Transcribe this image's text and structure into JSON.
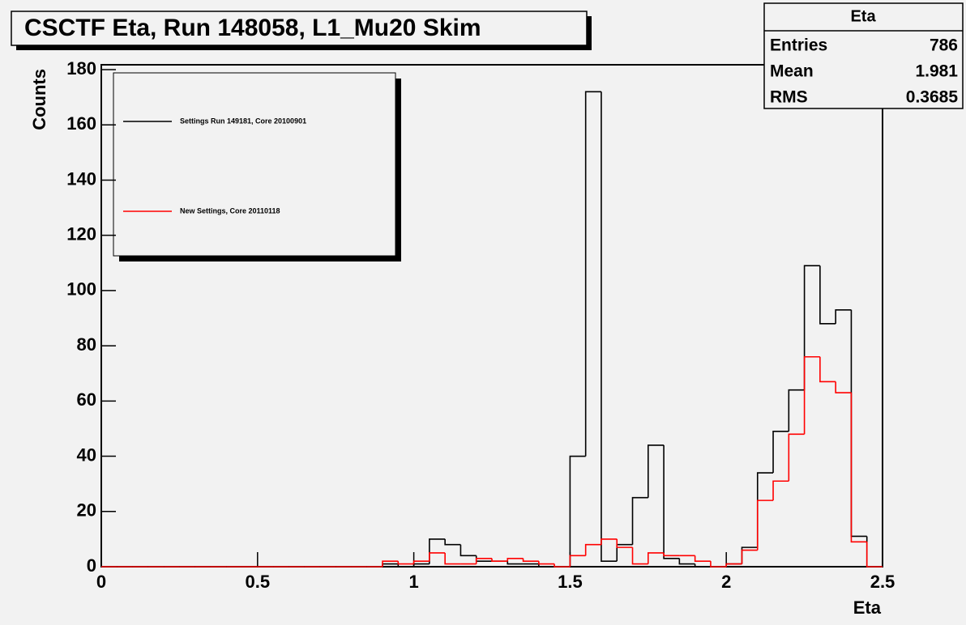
{
  "chart_data": {
    "type": "histogram",
    "title": "CSCTF Eta, Run 148058, L1_Mu20 Skim",
    "x_label": "Eta",
    "y_label": "Counts",
    "bins": [
      0,
      0.05,
      0.1,
      0.15,
      0.2,
      0.25,
      0.3,
      0.35,
      0.4,
      0.45,
      0.5,
      0.55,
      0.6,
      0.65,
      0.7,
      0.75,
      0.8,
      0.85,
      0.9,
      0.95,
      1,
      1.05,
      1.1,
      1.15,
      1.2,
      1.25,
      1.3,
      1.35,
      1.4,
      1.45,
      1.5,
      1.55,
      1.6,
      1.65,
      1.7,
      1.75,
      1.8,
      1.85,
      1.9,
      1.95,
      2,
      2.05,
      2.1,
      2.15,
      2.2,
      2.25,
      2.3,
      2.35,
      2.4,
      2.45,
      2.5
    ],
    "series": [
      {
        "name": "Settings Run 149181, Core 20100901",
        "color": "#000000",
        "values": [
          0,
          0,
          0,
          0,
          0,
          0,
          0,
          0,
          0,
          0,
          0,
          0,
          0,
          0,
          0,
          0,
          0,
          0,
          1,
          0,
          1,
          10,
          8,
          4,
          2,
          2,
          1,
          1,
          0,
          0,
          40,
          172,
          2,
          8,
          25,
          44,
          3,
          1,
          0,
          0,
          1,
          7,
          34,
          49,
          64,
          109,
          88,
          93,
          11,
          0
        ]
      },
      {
        "name": "New Settings, Core 20110118",
        "color": "#ff0000",
        "values": [
          0,
          0,
          0,
          0,
          0,
          0,
          0,
          0,
          0,
          0,
          0,
          0,
          0,
          0,
          0,
          0,
          0,
          0,
          2,
          1,
          2,
          5,
          1,
          1,
          3,
          2,
          3,
          2,
          1,
          0,
          4,
          8,
          10,
          7,
          1,
          5,
          4,
          4,
          2,
          0,
          1,
          6,
          24,
          31,
          48,
          76,
          67,
          63,
          9,
          0
        ]
      }
    ],
    "xlim": [
      0,
      2.5
    ],
    "xticks": [
      0,
      0.5,
      1,
      1.5,
      2,
      2.5
    ],
    "ylim": [
      0,
      180
    ],
    "yticks": [
      0,
      20,
      40,
      60,
      80,
      100,
      120,
      140,
      160,
      180
    ],
    "stats": {
      "title": "Eta",
      "rows": [
        {
          "label": "Entries",
          "value": 786
        },
        {
          "label": "Mean",
          "value": 1.981
        },
        {
          "label": "RMS",
          "value": 0.3685
        }
      ]
    }
  }
}
